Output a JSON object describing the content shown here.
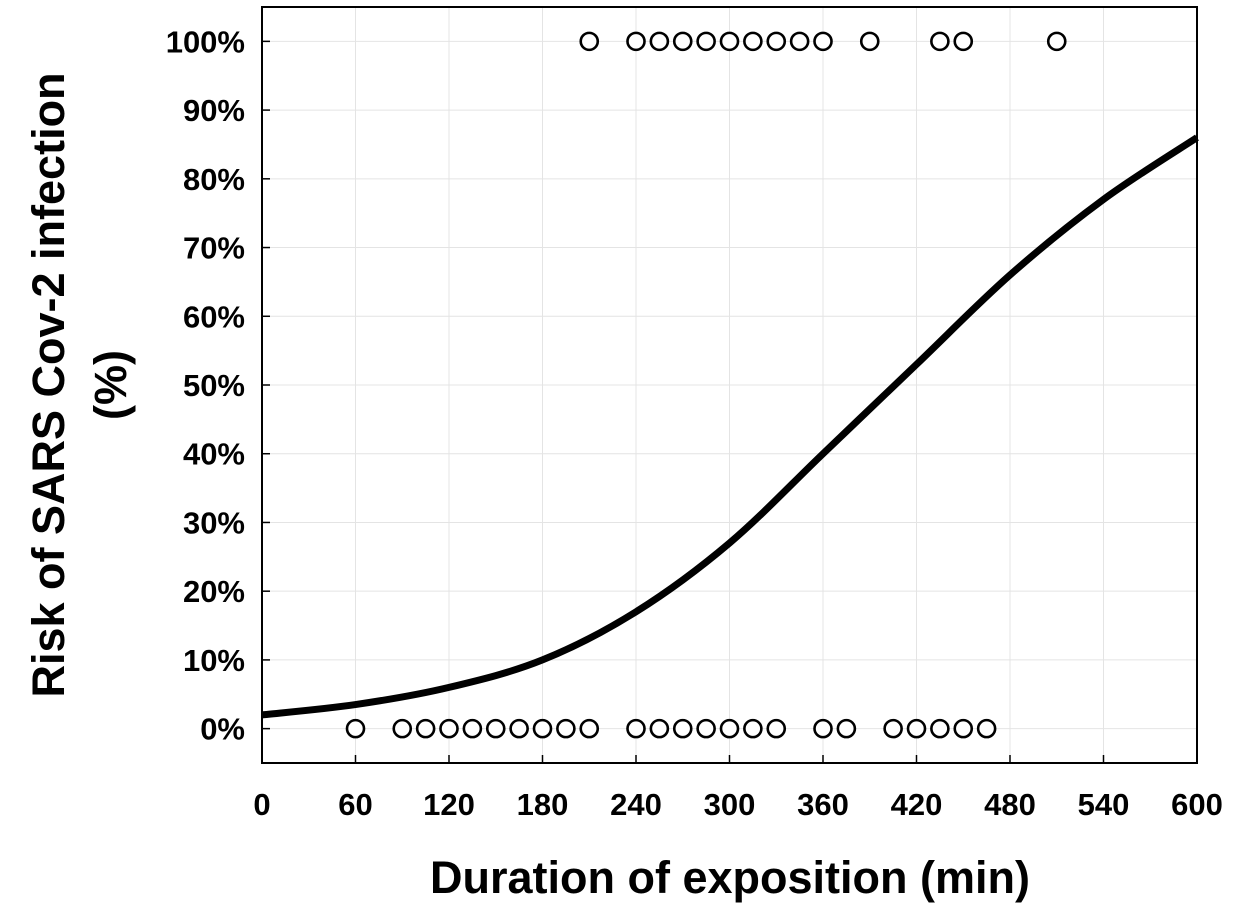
{
  "chart_data": {
    "type": "scatter",
    "title": "",
    "xlabel": "Duration of exposition (min)",
    "ylabel": "Risk of SARS Cov-2 infection",
    "ylabel_line2": "(%)",
    "xlim": [
      0,
      600
    ],
    "ylim": [
      -0.05,
      1.05
    ],
    "x_ticks": [
      0,
      60,
      120,
      180,
      240,
      300,
      360,
      420,
      480,
      540,
      600
    ],
    "x_tick_labels": [
      "0",
      "60",
      "120",
      "180",
      "240",
      "300",
      "360",
      "420",
      "480",
      "540",
      "600"
    ],
    "y_ticks": [
      0,
      0.1,
      0.2,
      0.3,
      0.4,
      0.5,
      0.6,
      0.7,
      0.8,
      0.9,
      1.0
    ],
    "y_tick_labels": [
      "0%",
      "10%",
      "20%",
      "30%",
      "40%",
      "50%",
      "60%",
      "70%",
      "80%",
      "90%",
      "100%"
    ],
    "grid": true,
    "series": [
      {
        "kind": "scatter",
        "marker": "open-circle",
        "x": [
          210,
          240,
          255,
          270,
          285,
          300,
          315,
          330,
          345,
          360,
          390,
          435,
          450,
          510
        ],
        "y": [
          1,
          1,
          1,
          1,
          1,
          1,
          1,
          1,
          1,
          1,
          1,
          1,
          1,
          1
        ]
      },
      {
        "kind": "scatter",
        "marker": "open-circle",
        "x": [
          60,
          90,
          105,
          120,
          135,
          150,
          165,
          180,
          195,
          210,
          240,
          255,
          270,
          285,
          300,
          315,
          330,
          360,
          375,
          405,
          420,
          435,
          450,
          465
        ],
        "y": [
          0,
          0,
          0,
          0,
          0,
          0,
          0,
          0,
          0,
          0,
          0,
          0,
          0,
          0,
          0,
          0,
          0,
          0,
          0,
          0,
          0,
          0,
          0,
          0
        ]
      },
      {
        "kind": "line",
        "style": "logistic-fit",
        "x": [
          0,
          60,
          120,
          180,
          240,
          300,
          360,
          420,
          480,
          540,
          600
        ],
        "y": [
          0.02,
          0.035,
          0.06,
          0.1,
          0.17,
          0.27,
          0.4,
          0.53,
          0.66,
          0.77,
          0.86
        ]
      }
    ],
    "colors": {
      "line": "#000000",
      "marker": "#000000",
      "grid": "#e4e4e4",
      "axes": "#000000"
    }
  }
}
